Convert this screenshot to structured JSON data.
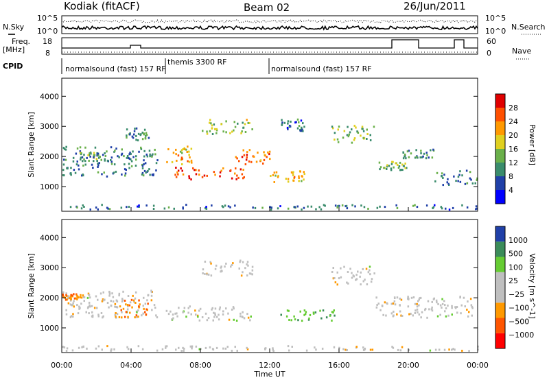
{
  "header": {
    "radar": "Kodiak (fitACF)",
    "beam": "Beam 02",
    "date": "26/Jun/2011"
  },
  "side_labels": {
    "nsky": "N.Sky",
    "freq": "Freq.",
    "freq_unit": "[MHz]",
    "cpid": "CPID",
    "nsearch": "N.Search",
    "nave": "Nave"
  },
  "noise_ticks_left": [
    "10^5",
    "10^0"
  ],
  "noise_ticks_right": [
    "10^5",
    "10^0"
  ],
  "freq_ticks": [
    "18",
    "8"
  ],
  "nave_ticks": [
    "60",
    "0"
  ],
  "cpid_segments": [
    {
      "label": "normalsound (fast) 157 RF",
      "start": 0,
      "end": 6
    },
    {
      "label": "themis 3300 RF",
      "start": 6,
      "end": 12
    },
    {
      "label": "normalsound (fast) 157 RF",
      "start": 12,
      "end": 24
    }
  ],
  "colors": {
    "power": [
      "#0000ff",
      "#2040a8",
      "#3a8c6c",
      "#6ab04a",
      "#e0d020",
      "#ff9900",
      "#ff5000",
      "#e00000"
    ],
    "velocity": [
      "#ff0000",
      "#ff5500",
      "#ff9900",
      "#bfbfbf",
      "#bfbfbf",
      "#66cc33",
      "#3b8c5a",
      "#2040a8"
    ]
  },
  "chart_data": [
    {
      "type": "heatmap",
      "title": "",
      "xlabel": "",
      "ylabel": "Slant Range [km]",
      "xlim": [
        0,
        24
      ],
      "ylim": [
        180,
        4600
      ],
      "yticks": [
        "1000",
        "2000",
        "3000",
        "4000"
      ],
      "colorbar_label": "Power [dB]",
      "colorbar_ticks": [
        "4",
        "8",
        "12",
        "16",
        "20",
        "24",
        "28"
      ],
      "bands": [
        {
          "t": [
            0,
            5.5
          ],
          "r": [
            1300,
            2300
          ],
          "v": 9
        },
        {
          "t": [
            1,
            2.5
          ],
          "r": [
            1800,
            2100
          ],
          "v": 12
        },
        {
          "t": [
            3.5,
            5
          ],
          "r": [
            2500,
            2900
          ],
          "v": 10
        },
        {
          "t": [
            6,
            7.5
          ],
          "r": [
            1700,
            2300
          ],
          "v": 20
        },
        {
          "t": [
            6.5,
            10.5
          ],
          "r": [
            1200,
            1600
          ],
          "v": 26
        },
        {
          "t": [
            8,
            11
          ],
          "r": [
            2700,
            3200
          ],
          "v": 16
        },
        {
          "t": [
            10,
            12
          ],
          "r": [
            1700,
            2200
          ],
          "v": 24
        },
        {
          "t": [
            12,
            14
          ],
          "r": [
            1100,
            1500
          ],
          "v": 20
        },
        {
          "t": [
            12.5,
            14
          ],
          "r": [
            2800,
            3200
          ],
          "v": 8
        },
        {
          "t": [
            15.5,
            18
          ],
          "r": [
            2400,
            3000
          ],
          "v": 14
        },
        {
          "t": [
            18,
            20
          ],
          "r": [
            1500,
            1800
          ],
          "v": 14
        },
        {
          "t": [
            19.5,
            21.5
          ],
          "r": [
            1900,
            2200
          ],
          "v": 10
        },
        {
          "t": [
            21.5,
            24
          ],
          "r": [
            1000,
            1500
          ],
          "v": 9
        },
        {
          "t": [
            0,
            24
          ],
          "r": [
            200,
            360
          ],
          "v": 8
        }
      ]
    },
    {
      "type": "heatmap",
      "title": "",
      "xlabel": "Time UT",
      "ylabel": "Slant Range [km]",
      "xlim": [
        0,
        24
      ],
      "ylim": [
        180,
        4600
      ],
      "yticks": [
        "1000",
        "2000",
        "3000",
        "4000"
      ],
      "xticks": [
        "00:00",
        "04:00",
        "08:00",
        "12:00",
        "16:00",
        "20:00",
        "00:00"
      ],
      "colorbar_label": "Velocity [m s^-1]",
      "colorbar_ticks": [
        "1000",
        "500",
        "100",
        "25",
        "−25",
        "−100",
        "−500",
        "−1000"
      ],
      "bands": [
        {
          "t": [
            0,
            5.5
          ],
          "r": [
            1300,
            2200
          ],
          "v": 0
        },
        {
          "t": [
            3,
            5.2
          ],
          "r": [
            1300,
            1900
          ],
          "v": -150
        },
        {
          "t": [
            0,
            1.2
          ],
          "r": [
            1900,
            2100
          ],
          "v": -150
        },
        {
          "t": [
            6,
            11
          ],
          "r": [
            1200,
            1700
          ],
          "v": 0
        },
        {
          "t": [
            8,
            11
          ],
          "r": [
            2700,
            3200
          ],
          "v": 0
        },
        {
          "t": [
            12.3,
            16
          ],
          "r": [
            1200,
            1550
          ],
          "v": 150
        },
        {
          "t": [
            15.5,
            18
          ],
          "r": [
            2400,
            3000
          ],
          "v": 0
        },
        {
          "t": [
            18,
            24
          ],
          "r": [
            1300,
            2000
          ],
          "v": 0
        },
        {
          "t": [
            0,
            24
          ],
          "r": [
            200,
            360
          ],
          "v": 0
        }
      ]
    }
  ]
}
